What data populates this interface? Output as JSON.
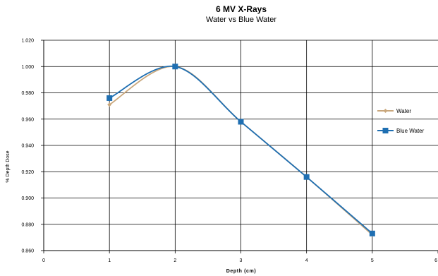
{
  "chart_data": {
    "type": "line",
    "title": "6 MV X-Rays",
    "subtitle": "Water vs Blue Water",
    "xlabel": "Depth (cm)",
    "ylabel": "% Depth Dose",
    "xlim": [
      0,
      6
    ],
    "ylim": [
      0.86,
      1.02
    ],
    "x_ticks": [
      0,
      1,
      2,
      3,
      4,
      5,
      6
    ],
    "y_ticks": [
      0.86,
      0.88,
      0.9,
      0.92,
      0.94,
      0.96,
      0.98,
      1.0,
      1.02
    ],
    "y_tick_labels": [
      "0.860",
      "0.880",
      "0.900",
      "0.920",
      "0.940",
      "0.960",
      "0.980",
      "1.000",
      "1.020"
    ],
    "x_tick_labels": [
      "0",
      "1",
      "2",
      "3",
      "4",
      "5",
      "6"
    ],
    "grid": true,
    "smooth": true,
    "legend_position": "right",
    "x": [
      1,
      2,
      3,
      4,
      5
    ],
    "series": [
      {
        "name": "Water",
        "color": "#c9a77c",
        "marker": "diamond",
        "values": [
          0.971,
          1.0,
          0.958,
          0.916,
          0.872
        ]
      },
      {
        "name": "Blue Water",
        "color": "#1f6fb2",
        "marker": "square",
        "values": [
          0.976,
          1.0,
          0.958,
          0.916,
          0.873
        ]
      }
    ]
  }
}
